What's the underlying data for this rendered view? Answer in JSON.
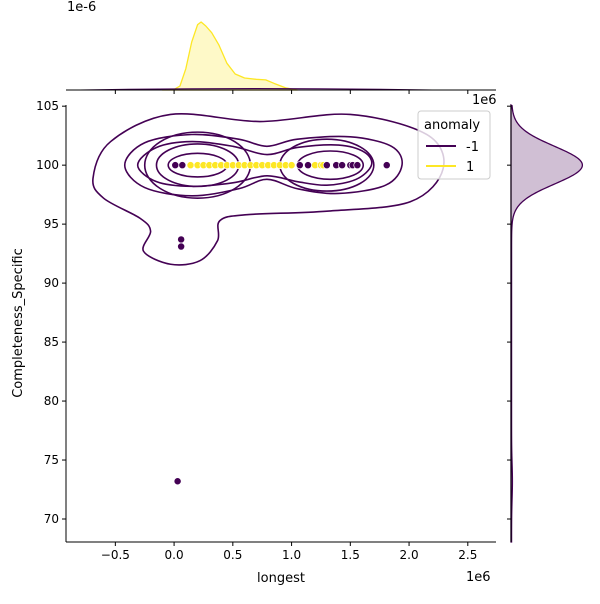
{
  "chart_data": {
    "type": "scatter",
    "subtype": "jointplot with kde contours and marginal kde",
    "xlabel": "longest",
    "ylabel": "Completeness_Specific",
    "x_offset_label": "1e6",
    "top_marginal_offset_label": "1e-6",
    "xlim": [
      -0.92,
      2.74
    ],
    "ylim": [
      68.05,
      105.1
    ],
    "xticks": [
      -0.5,
      0.0,
      0.5,
      1.0,
      1.5,
      2.0,
      2.5
    ],
    "xtick_labels": [
      "−0.5",
      "0.0",
      "0.5",
      "1.0",
      "1.5",
      "2.0",
      "2.5"
    ],
    "yticks": [
      70,
      75,
      80,
      85,
      90,
      95,
      100,
      105
    ],
    "ytick_labels": [
      "70",
      "75",
      "80",
      "85",
      "90",
      "95",
      "100",
      "105"
    ],
    "grid": false,
    "legend": {
      "title": "anomaly",
      "placement": "top-right",
      "entries": [
        {
          "label": "-1",
          "color": "#440154"
        },
        {
          "label": "1",
          "color": "#fde725"
        }
      ]
    },
    "series": [
      {
        "name": "-1",
        "color": "#440154",
        "points": [
          [
            0.01,
            100
          ],
          [
            0.07,
            100
          ],
          [
            1.07,
            100
          ],
          [
            1.14,
            100
          ],
          [
            1.3,
            100
          ],
          [
            1.38,
            100
          ],
          [
            1.43,
            100
          ],
          [
            1.5,
            100
          ],
          [
            1.52,
            100
          ],
          [
            1.56,
            100
          ],
          [
            1.81,
            100
          ],
          [
            0.06,
            93.7
          ],
          [
            0.06,
            93.1
          ],
          [
            0.03,
            73.2
          ]
        ]
      },
      {
        "name": "1",
        "color": "#fde725",
        "points": [
          [
            0.14,
            100
          ],
          [
            0.2,
            100
          ],
          [
            0.25,
            100
          ],
          [
            0.3,
            100
          ],
          [
            0.35,
            100
          ],
          [
            0.4,
            100
          ],
          [
            0.45,
            100
          ],
          [
            0.5,
            100
          ],
          [
            0.55,
            100
          ],
          [
            0.6,
            100
          ],
          [
            0.65,
            100
          ],
          [
            0.7,
            100
          ],
          [
            0.75,
            100
          ],
          [
            0.8,
            100
          ],
          [
            0.85,
            100
          ],
          [
            0.9,
            100
          ],
          [
            0.95,
            100
          ],
          [
            1.0,
            100
          ],
          [
            1.2,
            100
          ],
          [
            1.25,
            100
          ],
          [
            1.27,
            100
          ]
        ]
      }
    ],
    "contours_anomaly_-1": [
      {
        "level": 1,
        "points": [
          [
            -0.69,
            98.9
          ],
          [
            -0.54,
            102.0
          ],
          [
            -0.03,
            104.3
          ],
          [
            0.73,
            103.7
          ],
          [
            1.5,
            104.3
          ],
          [
            2.15,
            102.6
          ],
          [
            2.29,
            99.7
          ],
          [
            2.01,
            96.9
          ],
          [
            1.3,
            96.1
          ],
          [
            0.62,
            95.8
          ],
          [
            0.39,
            95.3
          ],
          [
            0.37,
            93.6
          ],
          [
            0.22,
            91.9
          ],
          [
            -0.03,
            91.6
          ],
          [
            -0.26,
            92.7
          ],
          [
            -0.2,
            94.4
          ],
          [
            -0.29,
            95.5
          ],
          [
            -0.6,
            97.2
          ]
        ]
      },
      {
        "level": 2,
        "points": [
          [
            -0.42,
            100
          ],
          [
            -0.25,
            101.9
          ],
          [
            0.15,
            102.6
          ],
          [
            0.55,
            102.2
          ],
          [
            0.79,
            101.6
          ],
          [
            1.05,
            102.2
          ],
          [
            1.5,
            102.4
          ],
          [
            1.85,
            101.6
          ],
          [
            1.94,
            100
          ],
          [
            1.8,
            98.3
          ],
          [
            1.4,
            97.6
          ],
          [
            1.05,
            98.0
          ],
          [
            0.79,
            98.8
          ],
          [
            0.55,
            98.0
          ],
          [
            0.15,
            97.4
          ],
          [
            -0.25,
            98.1
          ]
        ]
      },
      {
        "level": 3,
        "points": [
          [
            -0.31,
            100
          ],
          [
            -0.15,
            101.5
          ],
          [
            0.15,
            102.0
          ],
          [
            0.5,
            101.6
          ],
          [
            0.79,
            100.9
          ],
          [
            1.05,
            101.5
          ],
          [
            1.4,
            101.7
          ],
          [
            1.62,
            101.1
          ],
          [
            1.68,
            100
          ],
          [
            1.55,
            98.8
          ],
          [
            1.3,
            98.3
          ],
          [
            1.05,
            98.6
          ],
          [
            0.79,
            99.1
          ],
          [
            0.5,
            98.5
          ],
          [
            0.15,
            98.2
          ],
          [
            -0.15,
            98.6
          ]
        ]
      },
      {
        "level": 4,
        "ellipses": [
          {
            "cx": 0.2,
            "cy": 100,
            "rx": 0.45,
            "ry": 2.8
          },
          {
            "cx": 1.3,
            "cy": 100,
            "rx": 0.4,
            "ry": 2.2
          }
        ]
      },
      {
        "level": 5,
        "ellipses": [
          {
            "cx": 0.2,
            "cy": 100,
            "rx": 0.35,
            "ry": 1.8
          },
          {
            "cx": 1.33,
            "cy": 100,
            "rx": 0.28,
            "ry": 1.2
          }
        ]
      },
      {
        "level": 6,
        "ellipses": [
          {
            "cx": 0.2,
            "cy": 100,
            "rx": 0.25,
            "ry": 1.0
          }
        ]
      }
    ],
    "marginal_x_kde_1e-6": {
      "series": "1",
      "ylim": [
        0,
        3.0
      ],
      "x": [
        -0.1,
        0.0,
        0.05,
        0.1,
        0.15,
        0.2,
        0.23,
        0.27,
        0.32,
        0.38,
        0.45,
        0.52,
        0.6,
        0.7,
        0.78,
        0.85,
        0.95,
        1.05
      ],
      "density": [
        0,
        0.02,
        0.15,
        0.8,
        1.8,
        2.45,
        2.55,
        2.4,
        2.15,
        1.7,
        1.0,
        0.6,
        0.45,
        0.4,
        0.38,
        0.25,
        0.08,
        0
      ]
    },
    "marginal_x_kde_minus1_faint": {
      "x": [
        -0.8,
        2.2
      ],
      "density_max": 0.02
    },
    "marginal_y_kde": {
      "series": "-1",
      "xlim": [
        0,
        1.2
      ],
      "mean": 100,
      "sd": 1.6,
      "peak": 1.0,
      "tail": [
        [
          73.2,
          0.012
        ]
      ]
    }
  }
}
